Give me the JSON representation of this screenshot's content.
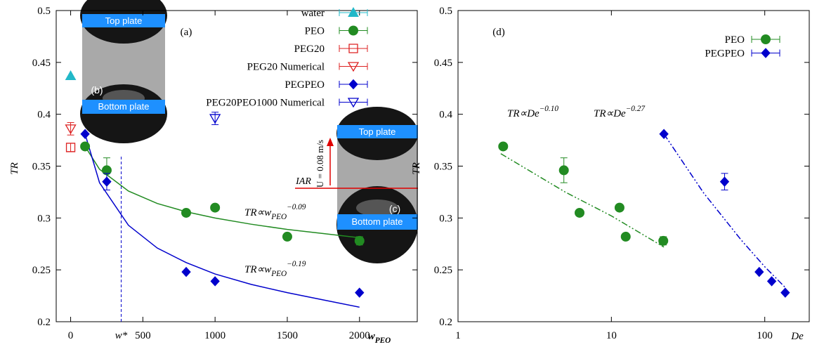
{
  "chart_data": [
    {
      "type": "scatter",
      "panel_label": "(a)",
      "y_label": "TR",
      "x_label": {
        "text": "w",
        "sub": "PEO"
      },
      "xlim": [
        -100,
        2400
      ],
      "ylim": [
        0.2,
        0.5
      ],
      "xticks": [
        0,
        500,
        1000,
        1500,
        2000
      ],
      "yticks": [
        0.2,
        0.25,
        0.3,
        0.35,
        0.4,
        0.45,
        0.5
      ],
      "grid": false,
      "legend": "upper right",
      "w_star": {
        "value": 350,
        "label": "w*",
        "ymax": 0.36
      },
      "series": [
        {
          "name": "water",
          "color": "#22b8c8",
          "marker": "triangle-up-filled",
          "x": [
            0
          ],
          "values": [
            0.437
          ],
          "errors": [
            null
          ]
        },
        {
          "name": "PEO",
          "color": "#228b22",
          "marker": "circle-filled",
          "x": [
            100,
            250,
            800,
            1000,
            1500,
            2000
          ],
          "values": [
            0.369,
            0.346,
            0.305,
            0.31,
            0.282,
            0.278
          ],
          "errors": [
            null,
            0.012,
            null,
            null,
            null,
            0.004
          ]
        },
        {
          "name": "PEG20",
          "color": "#dd2222",
          "marker": "square-open",
          "x": [
            0
          ],
          "values": [
            0.368
          ],
          "errors": [
            0.004
          ]
        },
        {
          "name": "PEG20 Numerical",
          "color": "#dd2222",
          "marker": "triangle-down-open",
          "x": [
            0
          ],
          "values": [
            0.386
          ],
          "errors": [
            0.006
          ]
        },
        {
          "name": "PEGPEO",
          "color": "#0000cc",
          "marker": "diamond-filled",
          "x": [
            100,
            250,
            800,
            1000,
            2000
          ],
          "values": [
            0.381,
            0.335,
            0.248,
            0.239,
            0.228
          ],
          "errors": [
            null,
            0.008,
            null,
            null,
            null
          ]
        },
        {
          "name": "PEG20PEO1000 Numerical",
          "color": "#0000cc",
          "marker": "triangle-down-open",
          "x": [
            1000
          ],
          "values": [
            0.396
          ],
          "errors": [
            0.006
          ]
        }
      ],
      "fit_lines": [
        {
          "color": "#228b22",
          "dash": "none",
          "x": [
            100,
            200,
            400,
            600,
            800,
            1000,
            1250,
            1500,
            1750,
            2000
          ],
          "values": [
            0.369,
            0.347,
            0.326,
            0.314,
            0.306,
            0.3,
            0.294,
            0.289,
            0.285,
            0.281
          ]
        },
        {
          "color": "#0000cc",
          "dash": "none",
          "x": [
            100,
            200,
            400,
            600,
            800,
            1000,
            1250,
            1500,
            1750,
            2000
          ],
          "values": [
            0.381,
            0.334,
            0.293,
            0.271,
            0.257,
            0.246,
            0.236,
            0.228,
            0.221,
            0.214
          ]
        }
      ],
      "annotations": [
        {
          "text": "TR∝w",
          "sub": "PEO",
          "sup": "−0.09",
          "color": "#228b22"
        },
        {
          "text": "TR∝w",
          "sub": "PEO",
          "sup": "−0.19",
          "color": "#0000cc"
        }
      ],
      "insets": [
        {
          "label": "(b)",
          "top": "Top plate",
          "bottom": "Bottom plate"
        },
        {
          "label": "(c)",
          "top": "Top plate",
          "bottom": "Bottom plate",
          "velocity": "U = 0.08 m/s",
          "interface": "IAR"
        }
      ]
    },
    {
      "type": "scatter",
      "panel_label": "(d)",
      "y_label": "TR",
      "x_label": {
        "text": "De"
      },
      "xscale": "log",
      "xlim": [
        1,
        195
      ],
      "ylim": [
        0.2,
        0.5
      ],
      "xticks": [
        1,
        10,
        100
      ],
      "yticks": [
        0.2,
        0.25,
        0.3,
        0.35,
        0.4,
        0.45,
        0.5
      ],
      "grid": false,
      "legend": "upper right",
      "series": [
        {
          "name": "PEO",
          "color": "#228b22",
          "marker": "circle-filled",
          "x": [
            1.97,
            4.9,
            6.2,
            11.3,
            12.4,
            21.8
          ],
          "values": [
            0.369,
            0.346,
            0.305,
            0.31,
            0.282,
            0.278
          ],
          "errors": [
            null,
            0.012,
            null,
            null,
            null,
            0.004
          ]
        },
        {
          "name": "PEGPEO",
          "color": "#0000cc",
          "marker": "diamond-filled",
          "x": [
            22,
            54.7,
            92,
            111,
            136
          ],
          "values": [
            0.381,
            0.335,
            0.248,
            0.239,
            0.228
          ],
          "errors": [
            null,
            0.008,
            null,
            null,
            null
          ]
        }
      ],
      "fit_lines": [
        {
          "color": "#228b22",
          "dash": "9 3 2 3 2 3",
          "x": [
            1.9,
            5,
            10,
            22
          ],
          "values": [
            0.362,
            0.325,
            0.302,
            0.272
          ]
        },
        {
          "color": "#0000cc",
          "dash": "9 3 2 3 2 3",
          "x": [
            22,
            40,
            70,
            100,
            136
          ],
          "values": [
            0.381,
            0.324,
            0.279,
            0.253,
            0.233
          ]
        }
      ],
      "annotations": [
        {
          "text": "TR∝De",
          "sup": "−0.10",
          "color": "#228b22"
        },
        {
          "text": "TR∝De",
          "sup": "−0.27",
          "color": "#0000cc"
        }
      ]
    }
  ]
}
